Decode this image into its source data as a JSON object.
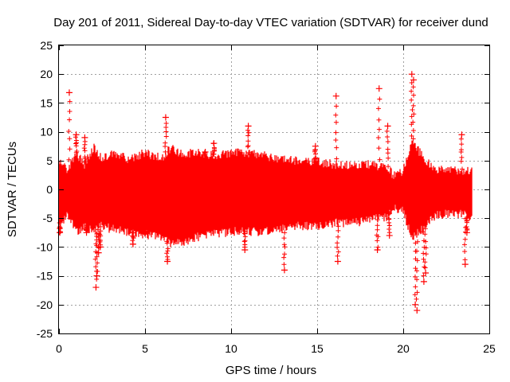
{
  "chart_data": {
    "type": "scatter",
    "title": "Day 201 of 2011, Sidereal Day-to-day VTEC variation (SDTVAR) for receiver dund",
    "xlabel": "GPS time / hours",
    "ylabel": "SDTVAR / TECUs",
    "xlim": [
      0,
      25
    ],
    "ylim": [
      -25,
      25
    ],
    "grid": true,
    "marker": "+",
    "color": "#ff0000",
    "x_ticks": [
      "0",
      "5",
      "10",
      "15",
      "20",
      "25"
    ],
    "y_ticks": [
      "25",
      "20",
      "15",
      "10",
      "5",
      "0",
      "-5",
      "-10",
      "-15",
      "-20",
      "-25"
    ],
    "series": [
      {
        "name": "SDTVAR",
        "envelope": {
          "x": [
            0.0,
            0.5,
            1.0,
            1.5,
            2.0,
            2.5,
            3.0,
            4.0,
            5.0,
            6.0,
            6.5,
            7.0,
            8.0,
            9.0,
            10.0,
            11.0,
            12.0,
            13.0,
            14.0,
            15.0,
            16.0,
            17.0,
            18.0,
            19.0,
            19.5,
            20.0,
            20.5,
            21.0,
            21.5,
            22.0,
            22.5,
            23.0,
            23.5,
            24.0
          ],
          "upper": [
            5,
            3,
            6,
            4,
            7,
            5,
            6,
            5,
            6,
            5,
            7,
            6,
            6,
            5.5,
            6,
            6,
            5.5,
            5,
            4.5,
            4.5,
            4,
            4,
            4,
            3.5,
            2,
            3,
            8,
            6,
            4,
            3,
            3,
            3,
            3,
            3
          ],
          "lower": [
            -6,
            -4,
            -7,
            -6,
            -7,
            -6,
            -6.5,
            -7,
            -7.5,
            -8,
            -9,
            -9,
            -8,
            -7.5,
            -7,
            -7,
            -7,
            -6.5,
            -6,
            -6,
            -5.5,
            -5.5,
            -5,
            -4.5,
            -3,
            -3.5,
            -8,
            -7,
            -5,
            -4,
            -4,
            -4,
            -4,
            -5
          ]
        },
        "outliers": {
          "x": [
            0.05,
            0.6,
            1.0,
            1.5,
            1.6,
            2.15,
            2.2,
            2.3,
            2.4,
            4.3,
            5.0,
            6.2,
            6.3,
            8.5,
            9.0,
            10.8,
            11.0,
            13.1,
            14.9,
            16.1,
            16.2,
            18.6,
            18.5,
            19.1,
            19.2,
            20.5,
            20.6,
            20.7,
            20.8,
            21.2,
            21.3,
            23.4,
            23.6,
            23.7
          ],
          "y": [
            -7.5,
            16.8,
            9.5,
            9,
            -7.5,
            -17,
            -15,
            -11,
            -10,
            -9.5,
            -7.5,
            12.5,
            -12.5,
            6.5,
            8,
            -10.5,
            11,
            -14,
            7.5,
            16.2,
            -12.5,
            17.5,
            -10.5,
            11,
            -8,
            20,
            19,
            -20,
            -21,
            -16,
            -14.5,
            9.5,
            -13,
            -7.5
          ]
        }
      }
    ]
  }
}
